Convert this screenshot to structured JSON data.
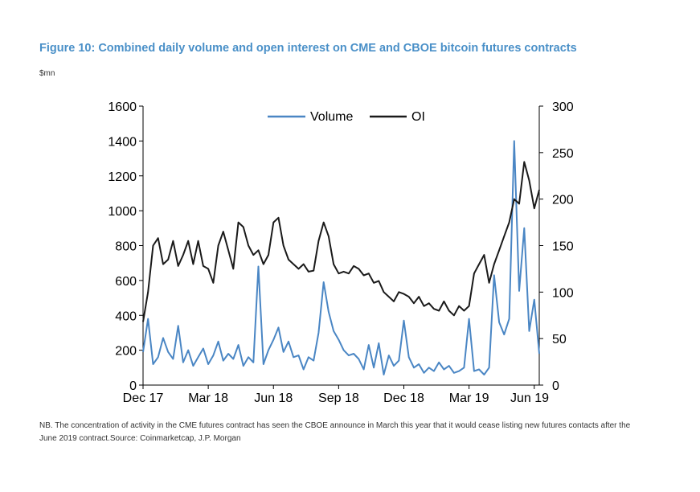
{
  "figure": {
    "title": "Figure 10: Combined daily volume and open interest on CME and CBOE bitcoin futures contracts",
    "unit": "$mn",
    "note": "NB. The concentration of activity in the CME futures contract has seen the CBOE announce in March this year that it would cease listing new futures contacts after the June 2019 contract.Source: Coinmarketcap, J.P. Morgan"
  },
  "chart_data": {
    "type": "line",
    "title": "Combined daily volume and open interest on CME and CBOE bitcoin futures contracts",
    "x_labels": [
      "Dec 17",
      "Mar 18",
      "Jun 18",
      "Sep 18",
      "Dec 18",
      "Mar 19",
      "Jun 19"
    ],
    "x_label_index": [
      0,
      13,
      26,
      39,
      52,
      65,
      78
    ],
    "left_axis": {
      "ylim": [
        0,
        1600
      ],
      "ticks": [
        "0",
        "200",
        "400",
        "600",
        "800",
        "1000",
        "1200",
        "1400",
        "1600"
      ]
    },
    "right_axis": {
      "ylim": [
        0,
        300
      ],
      "ticks": [
        "0",
        "50",
        "100",
        "150",
        "200",
        "250",
        "300"
      ]
    },
    "legend": {
      "volume": "Volume",
      "oi": "OI"
    },
    "colors": {
      "volume": "#4a86c4",
      "oi": "#1a1a1a",
      "axis": "#000000"
    },
    "series": [
      {
        "name": "Volume",
        "axis": "left",
        "values": [
          190,
          380,
          120,
          160,
          270,
          190,
          150,
          340,
          130,
          200,
          110,
          160,
          210,
          120,
          170,
          250,
          140,
          180,
          150,
          230,
          110,
          160,
          130,
          680,
          120,
          200,
          260,
          330,
          190,
          250,
          160,
          170,
          90,
          160,
          140,
          300,
          590,
          420,
          310,
          260,
          200,
          170,
          180,
          150,
          90,
          230,
          100,
          240,
          60,
          170,
          110,
          140,
          370,
          160,
          100,
          120,
          70,
          100,
          80,
          130,
          90,
          110,
          70,
          80,
          100,
          380,
          80,
          90,
          60,
          100,
          630,
          360,
          290,
          380,
          1400,
          540,
          900,
          310,
          490,
          180
        ]
      },
      {
        "name": "OI",
        "axis": "right",
        "values": [
          68,
          100,
          150,
          158,
          130,
          135,
          155,
          128,
          140,
          155,
          130,
          155,
          128,
          125,
          110,
          150,
          165,
          145,
          125,
          175,
          170,
          150,
          140,
          145,
          130,
          140,
          175,
          180,
          150,
          135,
          130,
          125,
          130,
          122,
          123,
          155,
          175,
          160,
          130,
          120,
          122,
          120,
          128,
          125,
          118,
          120,
          110,
          112,
          100,
          95,
          90,
          100,
          98,
          95,
          88,
          95,
          85,
          88,
          82,
          80,
          90,
          80,
          75,
          85,
          80,
          85,
          120,
          130,
          140,
          110,
          130,
          145,
          160,
          175,
          200,
          195,
          240,
          220,
          190,
          210
        ]
      }
    ]
  }
}
